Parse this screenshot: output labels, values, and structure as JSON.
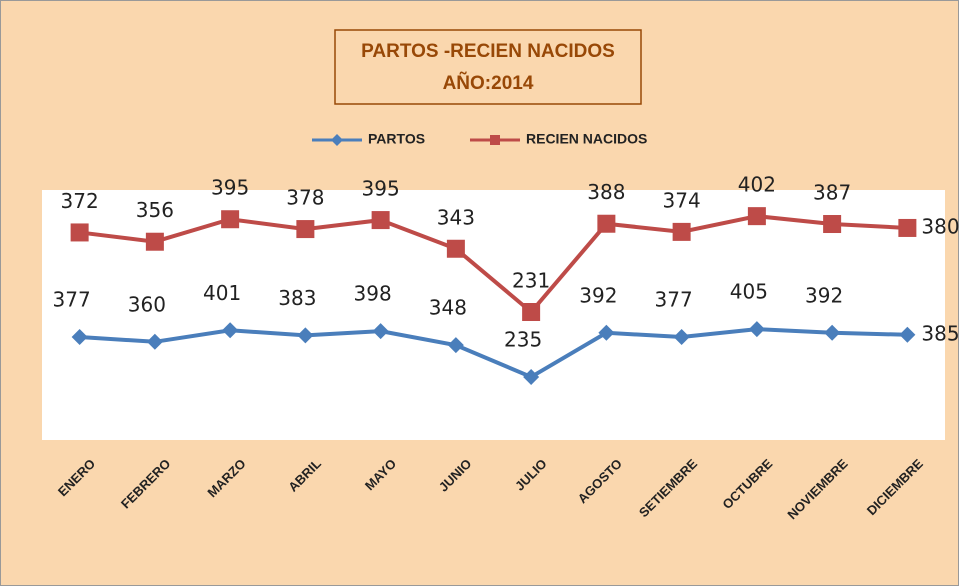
{
  "chart_data": {
    "type": "line",
    "stacked": true,
    "title": "PARTOS -RECIEN NACIDOS",
    "subtitle": "AÑO:2014",
    "categories": [
      "ENERO",
      "FEBRERO",
      "MARZO",
      "ABRIL",
      "MAYO",
      "JUNIO",
      "JULIO",
      "AGOSTO",
      "SETIEMBRE",
      "OCTUBRE",
      "NOVIEMBRE",
      "DICIEMBRE"
    ],
    "series": [
      {
        "name": "PARTOS",
        "color": "#4a7ebb",
        "marker": "diamond",
        "values": [
          377,
          360,
          401,
          383,
          398,
          348,
          235,
          392,
          377,
          405,
          392,
          385
        ]
      },
      {
        "name": "RECIEN NACIDOS",
        "color": "#be4b48",
        "marker": "square",
        "values": [
          372,
          356,
          395,
          378,
          395,
          343,
          231,
          388,
          374,
          402,
          387,
          380
        ]
      }
    ],
    "ylim": [
      0,
      900
    ],
    "legend": "top"
  }
}
